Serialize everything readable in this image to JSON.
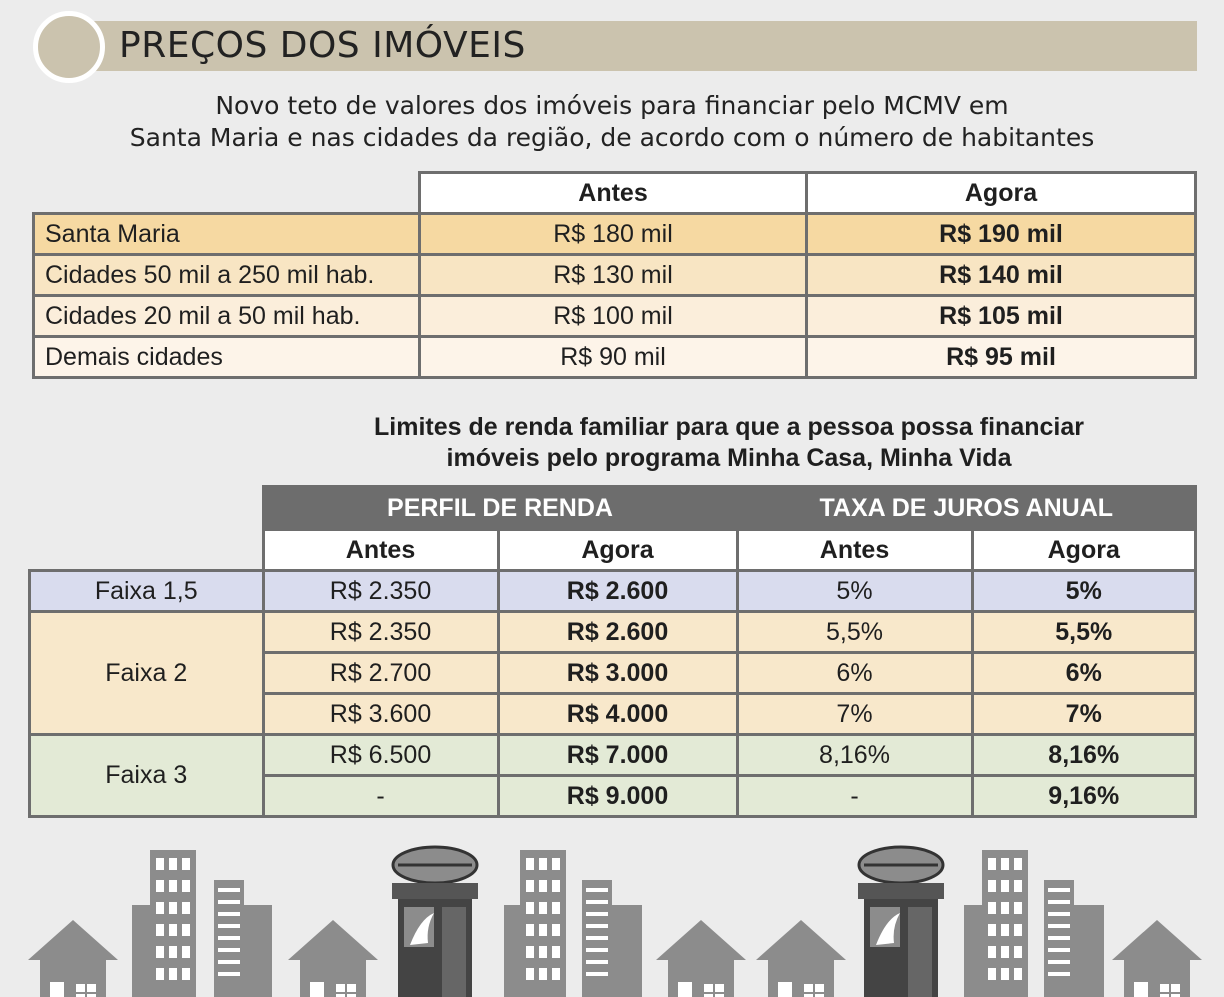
{
  "header": {
    "title": "PREÇOS DOS IMÓVEIS"
  },
  "subtitle": {
    "line1": "Novo teto de valores dos imóveis para financiar pelo MCMV em",
    "line2": "Santa Maria e nas cidades da região, de acordo com o número de habitantes"
  },
  "price_table": {
    "headers": [
      "Antes",
      "Agora"
    ],
    "rows": [
      {
        "label": "Santa Maria",
        "antes": "R$ 180 mil",
        "agora": "R$ 190 mil"
      },
      {
        "label": "Cidades 50 mil a 250 mil hab.",
        "antes": "R$ 130 mil",
        "agora": "R$ 140 mil"
      },
      {
        "label": "Cidades 20 mil a 50 mil hab.",
        "antes": "R$ 100 mil",
        "agora": "R$ 105 mil"
      },
      {
        "label": "Demais cidades",
        "antes": "R$ 90 mil",
        "agora": "R$ 95 mil"
      }
    ]
  },
  "income_section": {
    "line1": "Limites de renda familiar para que a pessoa possa financiar",
    "line2": "imóveis pelo programa Minha Casa, Minha Vida"
  },
  "income_table": {
    "groups": [
      "PERFIL DE RENDA",
      "TAXA DE JUROS ANUAL"
    ],
    "subheaders": [
      "Antes",
      "Agora",
      "Antes",
      "Agora"
    ],
    "faixas": [
      {
        "label": "Faixa 1,5",
        "rows": [
          [
            "R$ 2.350",
            "R$ 2.600",
            "5%",
            "5%"
          ]
        ]
      },
      {
        "label": "Faixa 2",
        "rows": [
          [
            "R$ 2.350",
            "R$ 2.600",
            "5,5%",
            "5,5%"
          ],
          [
            "R$ 2.700",
            "R$ 3.000",
            "6%",
            "6%"
          ],
          [
            "R$ 3.600",
            "R$ 4.000",
            "7%",
            "7%"
          ]
        ]
      },
      {
        "label": "Faixa 3",
        "rows": [
          [
            "R$ 6.500",
            "R$ 7.000",
            "8,16%",
            "8,16%"
          ],
          [
            "-",
            "R$ 9.000",
            "-",
            "9,16%"
          ]
        ]
      }
    ]
  },
  "colors": {
    "header_bar": "#cbc3ae",
    "group_header": "#6d6d6d",
    "faixa_1_5": "#d9dcee",
    "faixa_2": "#f8e8cb",
    "faixa_3": "#e3ead6",
    "skyline": "#8c8c8c"
  }
}
